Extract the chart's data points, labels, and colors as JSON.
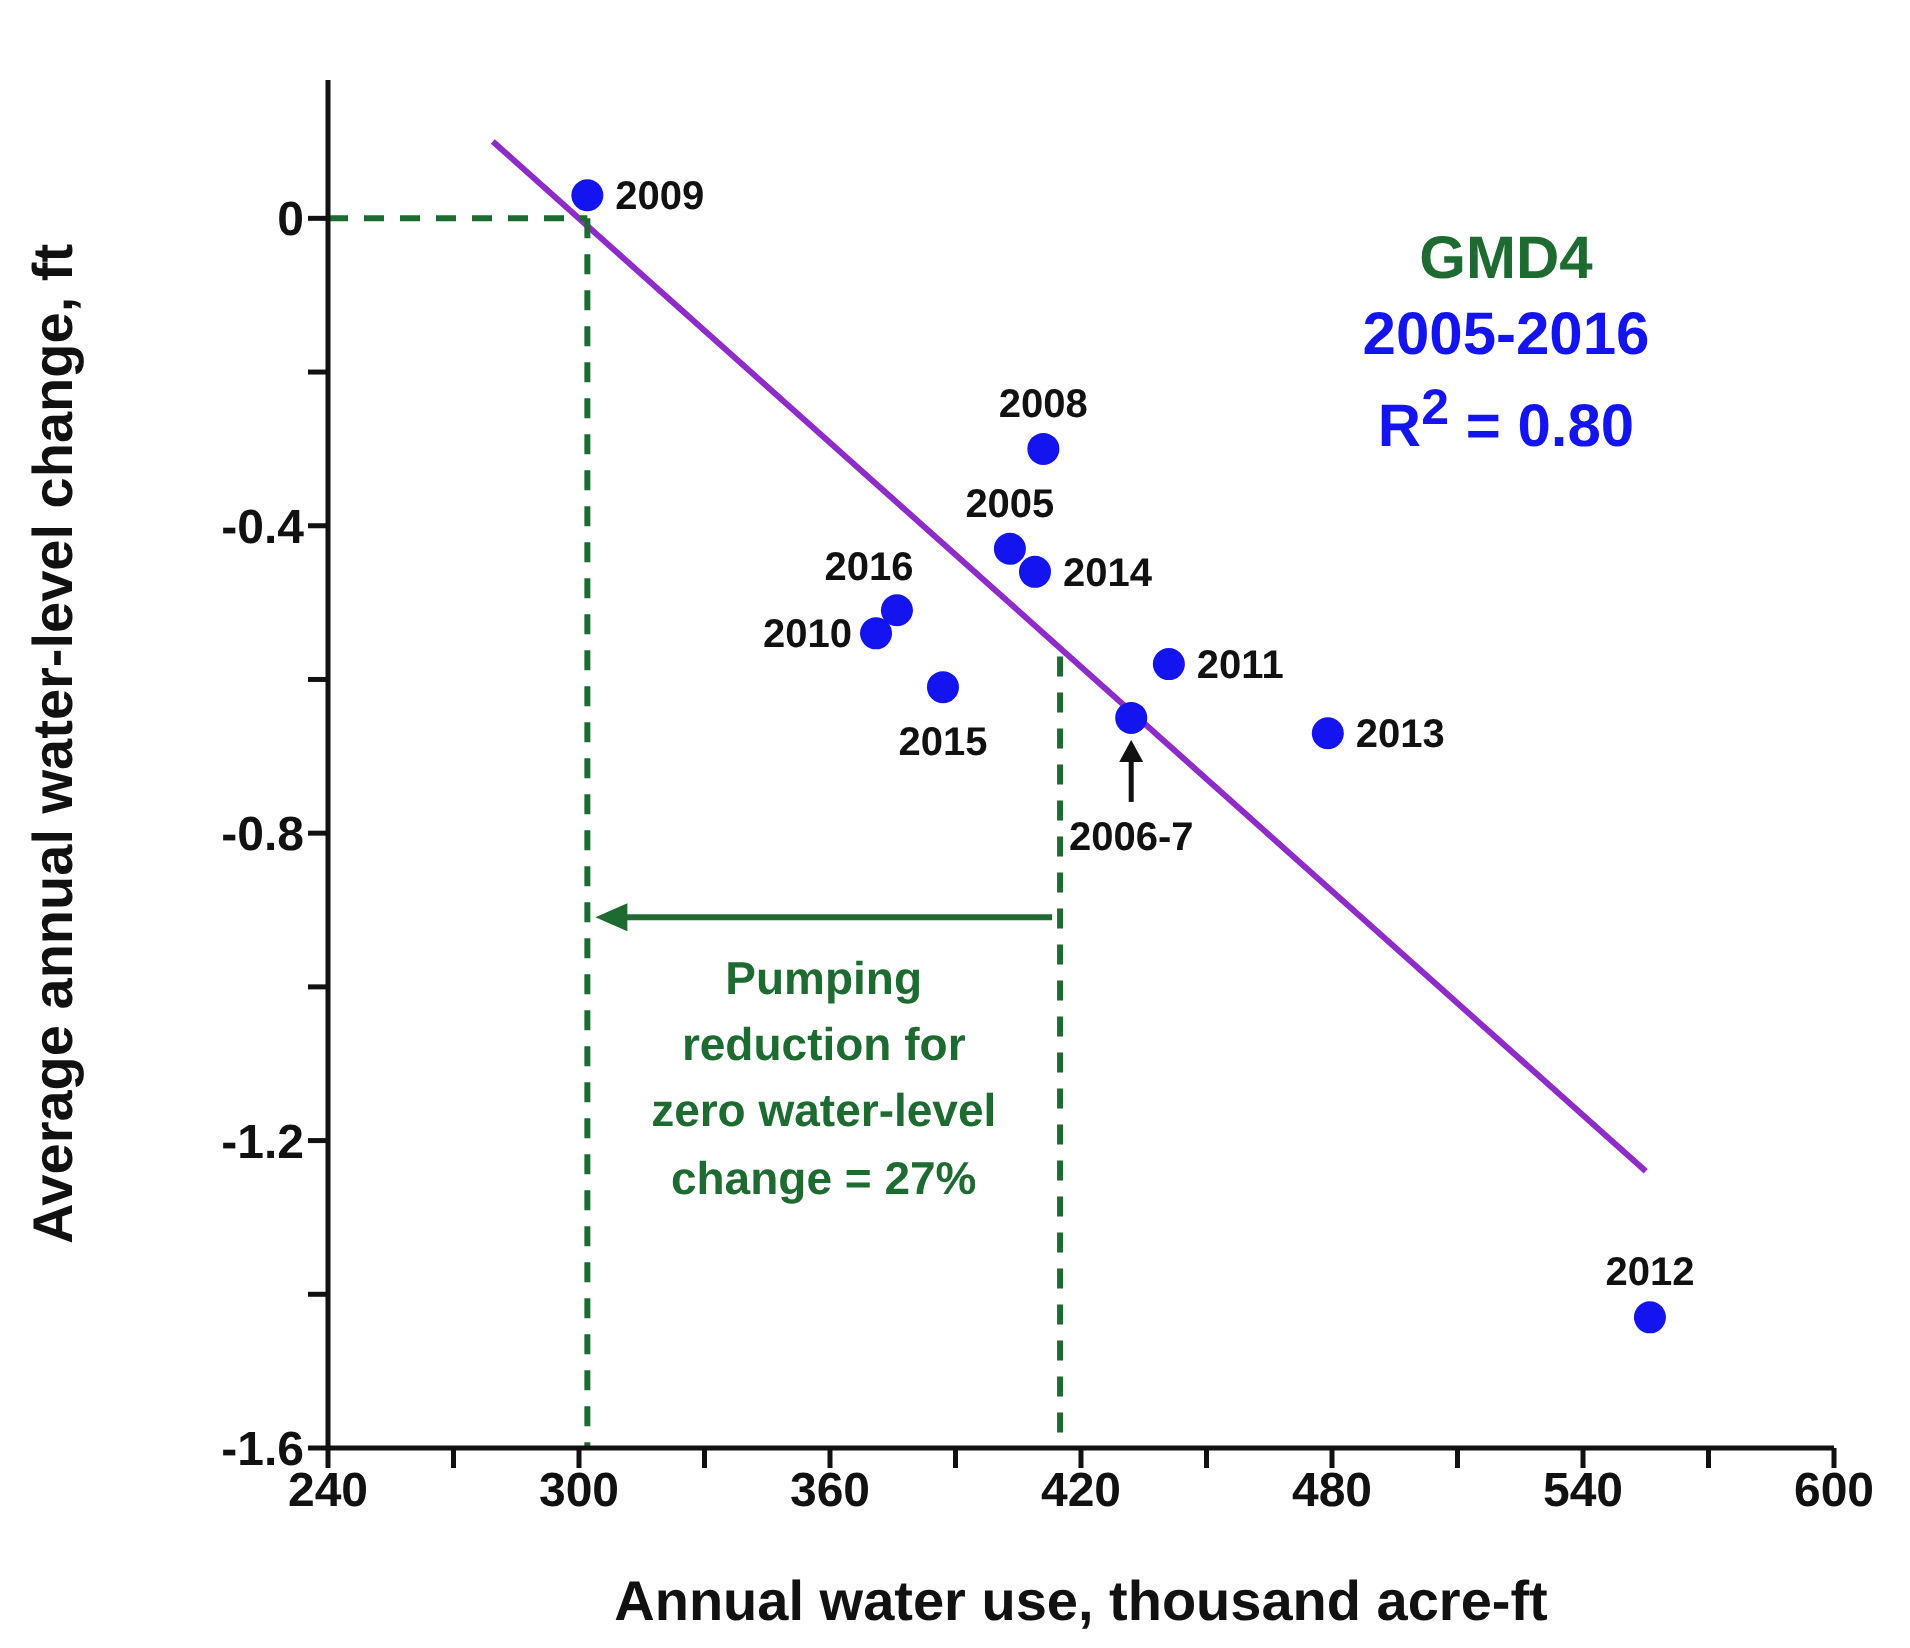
{
  "chart_data": {
    "type": "scatter",
    "xlabel": "Annual water use, thousand acre-ft",
    "ylabel": "Average annual water-level change, ft",
    "xlim": [
      240,
      600
    ],
    "ylim": [
      -1.6,
      0.18
    ],
    "xticks": [
      240,
      {
        "value": 270,
        "label": null
      },
      300,
      {
        "value": 330,
        "label": null
      },
      360,
      {
        "value": 390,
        "label": null
      },
      420,
      {
        "value": 450,
        "label": null
      },
      480,
      {
        "value": 510,
        "label": null
      },
      540,
      {
        "value": 570,
        "label": null
      },
      600
    ],
    "yticks": [
      -1.6,
      {
        "value": -1.4,
        "label": null
      },
      -1.2,
      {
        "value": -1.0,
        "label": null
      },
      -0.8,
      {
        "value": -0.6,
        "label": null
      },
      -0.4,
      {
        "value": -0.2,
        "label": null
      },
      0
    ],
    "grid": false,
    "legend": false,
    "marker": "circle",
    "annotations": [
      "GMD4",
      "2005-2016",
      "R$^{2}$ = 0.80",
      "Pumping reduction for zero water-level change = 27%",
      {
        "text": "2009",
        "x": 302,
        "y": 0.03
      },
      {
        "text": "2008",
        "x": 411,
        "y": -0.3
      },
      {
        "text": "2005",
        "x": 403,
        "y": -0.43
      },
      {
        "text": "2014",
        "x": 409,
        "y": -0.46
      },
      {
        "text": "2016",
        "x": 376,
        "y": -0.51
      },
      {
        "text": "2010",
        "x": 371,
        "y": -0.54
      },
      {
        "text": "2015",
        "x": 387,
        "y": -0.61
      },
      {
        "text": "2011",
        "x": 441,
        "y": -0.58
      },
      {
        "text": "2006-7",
        "x": 432,
        "y": -0.65
      },
      {
        "text": "2013",
        "x": 479,
        "y": -0.67
      },
      {
        "text": "2012",
        "x": 556,
        "y": -1.43
      }
    ],
    "series": [
      {
        "color": "#1414f0",
        "x": [
          302,
          411,
          403,
          409,
          376,
          371,
          387,
          441,
          432,
          479,
          556
        ],
        "values": [
          0.03,
          -0.3,
          -0.43,
          -0.46,
          -0.51,
          -0.54,
          -0.61,
          -0.58,
          -0.65,
          -0.67,
          -1.43
        ]
      },
      {
        "type": "line",
        "color": "#8e2bc9",
        "line_style": "solid",
        "marker": "none",
        "x": [
          279.4,
          555
        ],
        "values": [
          0.1,
          -1.24
        ]
      },
      {
        "type": "line",
        "color": "#1e6b32",
        "line_style": "dashed",
        "marker": "none",
        "x": [
          240,
          302
        ],
        "values": [
          0,
          0
        ]
      },
      {
        "type": "line",
        "color": "#1e6b32",
        "line_style": "dashed",
        "marker": "none",
        "x": [
          302,
          302
        ],
        "values": [
          0,
          -1.6
        ]
      },
      {
        "type": "line",
        "color": "#1e6b32",
        "line_style": "dashed",
        "marker": "none",
        "x": [
          415,
          415
        ],
        "values": [
          -0.57,
          -1.6
        ]
      }
    ]
  }
}
